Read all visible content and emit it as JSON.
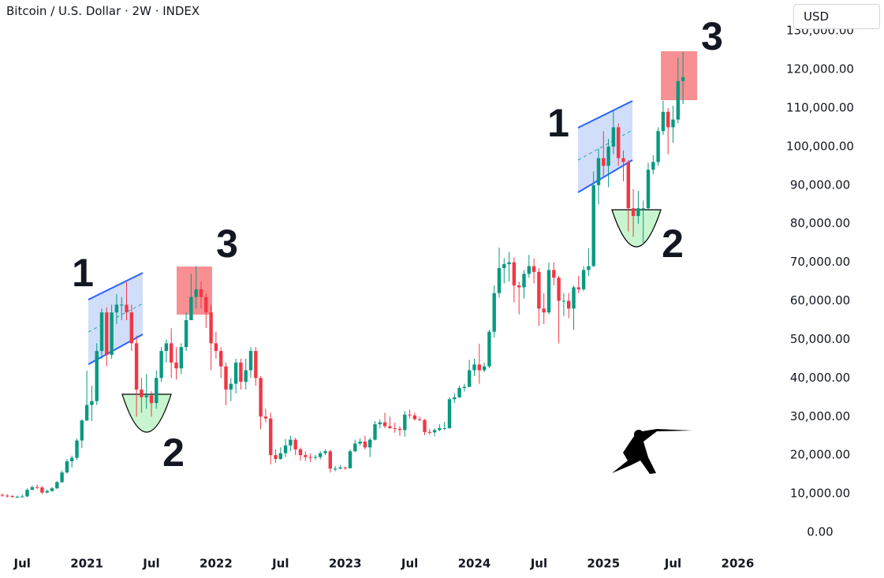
{
  "chart_data": {
    "type": "candlestick",
    "title": "Bitcoin / U.S. Dollar · 2W · INDEX",
    "currency": "USD",
    "up_color": "#089981",
    "down_color": "#f23645",
    "grid": false,
    "ylim": [
      0,
      138000
    ],
    "yticks": [
      {
        "value": 0,
        "label": "0.00"
      },
      {
        "value": 10000,
        "label": "10,000.00"
      },
      {
        "value": 20000,
        "label": "20,000.00"
      },
      {
        "value": 30000,
        "label": "30,000.00"
      },
      {
        "value": 40000,
        "label": "40,000.00"
      },
      {
        "value": 50000,
        "label": "50,000.00"
      },
      {
        "value": 60000,
        "label": "60,000.00"
      },
      {
        "value": 70000,
        "label": "70,000.00"
      },
      {
        "value": 80000,
        "label": "80,000.00"
      },
      {
        "value": 90000,
        "label": "90,000.00"
      },
      {
        "value": 100000,
        "label": "100,000.00"
      },
      {
        "value": 110000,
        "label": "110,000.00"
      },
      {
        "value": 120000,
        "label": "120,000.00"
      },
      {
        "value": 130000,
        "label": "130,000.00"
      }
    ],
    "categories": [
      null,
      null,
      null,
      null,
      "Jul",
      null,
      null,
      null,
      null,
      null,
      null,
      null,
      null,
      null,
      null,
      null,
      null,
      "2021",
      null,
      null,
      null,
      null,
      null,
      null,
      null,
      null,
      null,
      null,
      null,
      null,
      "Jul",
      null,
      null,
      null,
      null,
      null,
      null,
      null,
      null,
      null,
      null,
      null,
      null,
      "2022",
      null,
      null,
      null,
      null,
      null,
      null,
      null,
      null,
      null,
      null,
      null,
      null,
      "Jul",
      null,
      null,
      null,
      null,
      null,
      null,
      null,
      null,
      null,
      null,
      null,
      null,
      "2023",
      null,
      null,
      null,
      null,
      null,
      null,
      null,
      null,
      null,
      null,
      null,
      null,
      "Jul",
      null,
      null,
      null,
      null,
      null,
      null,
      null,
      null,
      null,
      null,
      null,
      null,
      "2024",
      null,
      null,
      null,
      null,
      null,
      null,
      null,
      null,
      null,
      null,
      null,
      null,
      "Jul",
      null,
      null,
      null,
      null,
      null,
      null,
      null,
      null,
      null,
      null,
      null,
      null,
      "2025",
      null,
      null,
      null,
      null,
      null,
      null,
      null,
      null,
      null,
      null,
      null,
      null,
      null,
      "Jul",
      null,
      null,
      null,
      null,
      null,
      null,
      null,
      null,
      null,
      null,
      null,
      null,
      "2026"
    ],
    "open": [
      9700,
      9500,
      9400,
      9200,
      9200,
      9300,
      11000,
      11700,
      11600,
      10300,
      10700,
      11400,
      13000,
      15500,
      18400,
      19300,
      23800,
      29000,
      33000,
      34000,
      47000,
      57000,
      46000,
      57000,
      59000,
      59000,
      57000,
      49000,
      37000,
      35000,
      35500,
      33500,
      40000,
      47000,
      49000,
      44000,
      42500,
      48000,
      55000,
      61000,
      63000,
      61000,
      57000,
      49000,
      47000,
      43000,
      37000,
      38500,
      44000,
      39000,
      42000,
      47000,
      40000,
      30000,
      29500,
      20000,
      19000,
      20500,
      22500,
      24000,
      21500,
      20000,
      19500,
      19300,
      19500,
      20500,
      21000,
      16500,
      16500,
      16800,
      16600,
      21000,
      23000,
      23500,
      22000,
      24000,
      28000,
      28500,
      27500,
      27000,
      26800,
      26500,
      30500,
      30300,
      29300,
      29100,
      26000,
      25900,
      26500,
      27000,
      27000,
      34500,
      35000,
      37400,
      37700,
      42000,
      43500,
      42000,
      43000,
      52000,
      62000,
      68500,
      69500,
      70000,
      64000,
      63500,
      67000,
      69000,
      67500,
      58000,
      57000,
      68000,
      66000,
      60000,
      60000,
      58000,
      63500,
      63000,
      68000,
      69000,
      90000,
      97000,
      95000,
      100000,
      105000,
      97000,
      96000,
      84000,
      82000,
      84000,
      84000,
      94000,
      96000,
      104000,
      109000,
      105000,
      107000,
      117000,
      null,
      null,
      null,
      null,
      null,
      null,
      null,
      null,
      null,
      null,
      null
    ],
    "high": [
      10000,
      9900,
      9600,
      9500,
      9800,
      11400,
      12100,
      12400,
      12000,
      11100,
      11700,
      13300,
      16000,
      19000,
      19900,
      24300,
      29300,
      41900,
      38000,
      49000,
      58000,
      58300,
      59000,
      61700,
      61000,
      64800,
      59000,
      51000,
      40000,
      41000,
      36600,
      42000,
      48000,
      50000,
      52900,
      48000,
      49000,
      57000,
      67000,
      69000,
      65000,
      62000,
      59000,
      52000,
      48000,
      44000,
      40000,
      45000,
      45000,
      45000,
      48000,
      48000,
      40500,
      32000,
      31000,
      21500,
      22000,
      24200,
      25000,
      24500,
      22000,
      21000,
      20500,
      20100,
      21000,
      21500,
      21400,
      17200,
      17400,
      17000,
      21500,
      24000,
      24300,
      25000,
      24500,
      28800,
      29200,
      31000,
      30000,
      28400,
      27500,
      31400,
      31800,
      31000,
      30000,
      29400,
      26800,
      26900,
      28000,
      28600,
      35000,
      36000,
      38000,
      38500,
      44700,
      45000,
      48900,
      44000,
      52500,
      64000,
      73800,
      71000,
      72700,
      71300,
      65000,
      68000,
      71900,
      71000,
      68500,
      62000,
      69900,
      70000,
      66500,
      62000,
      62000,
      64000,
      66500,
      69000,
      73600,
      93500,
      99500,
      104000,
      102000,
      109500,
      106000,
      99000,
      96500,
      89000,
      88500,
      86000,
      95800,
      97800,
      105000,
      111900,
      110000,
      110600,
      123000,
      124500,
      null,
      null,
      null,
      null,
      null,
      null,
      null,
      null,
      null,
      null,
      null
    ],
    "low": [
      9200,
      9000,
      8900,
      8900,
      9000,
      9100,
      10900,
      11200,
      9900,
      10100,
      10500,
      11200,
      12800,
      15200,
      16800,
      18700,
      21800,
      28800,
      28800,
      33000,
      45000,
      43000,
      45000,
      54000,
      55000,
      55000,
      47000,
      30000,
      31000,
      32000,
      30000,
      32000,
      39000,
      44000,
      40000,
      39600,
      41000,
      47000,
      55000,
      58000,
      58000,
      53000,
      42000,
      45000,
      40000,
      33000,
      34000,
      36000,
      37000,
      37000,
      40000,
      38000,
      26700,
      28500,
      17600,
      18000,
      18800,
      19500,
      21000,
      20000,
      18600,
      18500,
      18200,
      18800,
      18900,
      20000,
      15500,
      15800,
      16300,
      16200,
      16500,
      20800,
      22500,
      21500,
      19500,
      23800,
      27000,
      27000,
      26800,
      25800,
      25000,
      24800,
      29500,
      29000,
      28800,
      25200,
      25300,
      24900,
      26200,
      26500,
      26800,
      33500,
      34800,
      36500,
      37600,
      40500,
      38500,
      41500,
      42500,
      50500,
      60800,
      64500,
      65000,
      59600,
      56500,
      60600,
      66000,
      64500,
      53500,
      54000,
      56500,
      64000,
      49000,
      56000,
      55500,
      52500,
      62000,
      62500,
      66500,
      68800,
      85000,
      92000,
      89500,
      98000,
      95000,
      91000,
      78000,
      76600,
      80000,
      74500,
      83800,
      92800,
      95000,
      103000,
      98000,
      101000,
      106000,
      111000,
      null,
      null,
      null,
      null,
      null,
      null,
      null,
      null,
      null,
      null,
      null
    ],
    "close": [
      9500,
      9400,
      9200,
      9200,
      9300,
      11000,
      11700,
      11600,
      10300,
      10700,
      11400,
      13000,
      15500,
      18400,
      19300,
      23800,
      29000,
      33000,
      34000,
      47000,
      57000,
      46000,
      57000,
      59000,
      59000,
      57000,
      49000,
      37000,
      35000,
      35500,
      33500,
      40000,
      47000,
      49000,
      44000,
      42500,
      48000,
      55000,
      61000,
      63000,
      61000,
      57000,
      49000,
      47000,
      43000,
      37000,
      38500,
      44000,
      39000,
      42000,
      47000,
      40000,
      30000,
      29500,
      20000,
      19000,
      20500,
      22500,
      24000,
      21500,
      20000,
      19500,
      19300,
      19500,
      20500,
      21000,
      16500,
      16500,
      16800,
      16600,
      21000,
      23000,
      23500,
      22000,
      24000,
      28000,
      28500,
      27500,
      27000,
      26800,
      26500,
      30500,
      30300,
      29300,
      29100,
      26000,
      25900,
      26500,
      27000,
      27000,
      34500,
      35000,
      37400,
      37700,
      42000,
      43500,
      42000,
      43000,
      52000,
      62000,
      68500,
      69500,
      70000,
      64000,
      63500,
      67000,
      69000,
      67500,
      58000,
      57000,
      68000,
      66000,
      60000,
      60000,
      58000,
      63500,
      63000,
      68000,
      69000,
      90000,
      97000,
      95000,
      100000,
      105000,
      97000,
      96000,
      84000,
      82000,
      84000,
      84000,
      94000,
      96000,
      104000,
      109000,
      105000,
      107000,
      117000,
      118000,
      null,
      null,
      null,
      null,
      null,
      null,
      null,
      null,
      null,
      null,
      null
    ],
    "annotations": [
      {
        "text": "1"
      },
      {
        "text": "2"
      },
      {
        "text": "3"
      },
      {
        "text": "1"
      },
      {
        "text": "2"
      },
      {
        "text": "3"
      }
    ]
  }
}
